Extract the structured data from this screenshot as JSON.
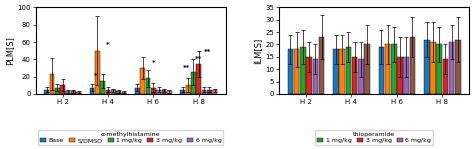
{
  "chart_data": [
    {
      "type": "bar",
      "ylabel": "PLM[S]",
      "categories": [
        "H 2",
        "H 4",
        "H 6",
        "H 8"
      ],
      "ylim": [
        0,
        100
      ],
      "yticks": [
        0,
        20,
        40,
        60,
        80,
        100
      ],
      "series": [
        {
          "name": "Base",
          "values": [
            5,
            7,
            7,
            5
          ],
          "errors": [
            3,
            4,
            4,
            3
          ]
        },
        {
          "name": "S/DMSO",
          "values": [
            23,
            50,
            30,
            10
          ],
          "errors": [
            18,
            40,
            13,
            8
          ]
        },
        {
          "name": "1 mg/kg",
          "values": [
            7,
            15,
            18,
            25
          ],
          "errors": [
            4,
            8,
            10,
            15
          ]
        },
        {
          "name": "3 mg/kg",
          "values": [
            10,
            5,
            7,
            35
          ],
          "errors": [
            7,
            3,
            5,
            15
          ]
        },
        {
          "name": "6 mg/kg",
          "values": [
            3,
            4,
            5,
            5
          ],
          "errors": [
            2,
            2,
            3,
            3
          ]
        },
        {
          "values": [
            3,
            3,
            4,
            5
          ],
          "errors": [
            2,
            2,
            2,
            3
          ]
        },
        {
          "values": [
            2,
            2,
            3,
            4
          ],
          "errors": [
            1,
            1,
            2,
            2
          ]
        }
      ],
      "legend": "lower center",
      "legend_title": "α-methylhistamine",
      "annotations": [
        {
          "text": "*",
          "x": 1.0,
          "y": 53
        },
        {
          "text": "*",
          "x": 0.73,
          "y": 17
        },
        {
          "text": "*",
          "x": 2.0,
          "y": 32
        },
        {
          "text": "**",
          "x": 2.73,
          "y": 27
        },
        {
          "text": "**",
          "x": 3.0,
          "y": 37
        },
        {
          "text": "**",
          "x": 3.19,
          "y": 45
        }
      ]
    },
    {
      "type": "bar",
      "ylabel": "ILM[S]",
      "categories": [
        "H 2",
        "H 4",
        "H 6",
        "H 8"
      ],
      "ylim": [
        0,
        35
      ],
      "yticks": [
        0,
        5,
        10,
        15,
        20,
        25,
        30,
        35
      ],
      "series": [
        {
          "values": [
            18,
            18,
            19,
            22
          ],
          "errors": [
            6,
            6,
            7,
            7
          ]
        },
        {
          "values": [
            18,
            18,
            20,
            21
          ],
          "errors": [
            7,
            6,
            8,
            8
          ]
        },
        {
          "name": "1 mg/kg",
          "values": [
            19,
            19,
            20,
            20
          ],
          "errors": [
            7,
            6,
            7,
            7
          ]
        },
        {
          "name": "3 mg/kg",
          "values": [
            15,
            15,
            15,
            14
          ],
          "errors": [
            6,
            6,
            8,
            6
          ]
        },
        {
          "name": "6 mg/kg",
          "values": [
            14,
            14,
            15,
            21
          ],
          "errors": [
            6,
            7,
            8,
            7
          ]
        },
        {
          "values": [
            23,
            20,
            23,
            22
          ],
          "errors": [
            9,
            8,
            8,
            9
          ]
        }
      ],
      "legend": "lower center",
      "legend_title": "thioperamide"
    }
  ]
}
